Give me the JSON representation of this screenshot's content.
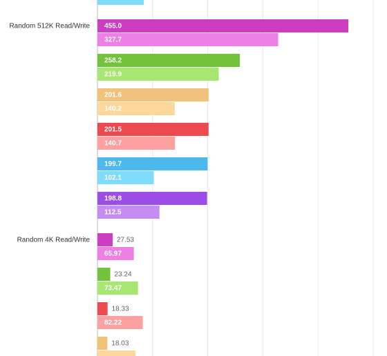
{
  "chart_data": {
    "type": "grouped-hbar",
    "xlim": [
      0,
      500
    ],
    "xticks": [
      0,
      100,
      200,
      300,
      400,
      500
    ],
    "grid": true,
    "groups": [
      {
        "label": null,
        "pairs": [
          {
            "colors": [
              "#4db8ec",
              "#7edbfb"
            ],
            "values": [
              null,
              84
            ],
            "value_labels": [
              null,
              null
            ]
          }
        ]
      },
      {
        "label": "Random 512K Read/Write",
        "pairs": [
          {
            "colors": [
              "#cc3dc2",
              "#ee7fe3"
            ],
            "values": [
              455.0,
              327.7
            ],
            "value_labels": [
              "455.0",
              "327.7"
            ]
          },
          {
            "colors": [
              "#73c23c",
              "#a8e672"
            ],
            "values": [
              258.2,
              219.9
            ],
            "value_labels": [
              "258.2",
              "219.9"
            ]
          },
          {
            "colors": [
              "#f0c27a",
              "#fcd89d"
            ],
            "values": [
              201.6,
              140.2
            ],
            "value_labels": [
              "201.6",
              "140.2"
            ]
          },
          {
            "colors": [
              "#ec4a4f",
              "#fca0a0"
            ],
            "values": [
              201.5,
              140.7
            ],
            "value_labels": [
              "201.5",
              "140.7"
            ]
          },
          {
            "colors": [
              "#4db8ec",
              "#7edbfb"
            ],
            "values": [
              199.7,
              102.1
            ],
            "value_labels": [
              "199.7",
              "102.1"
            ]
          },
          {
            "colors": [
              "#9b4de6",
              "#c38ef0"
            ],
            "values": [
              198.8,
              112.5
            ],
            "value_labels": [
              "198.8",
              "112.5"
            ]
          }
        ]
      },
      {
        "label": "Random 4K Read/Write",
        "pairs": [
          {
            "colors": [
              "#cc3dc2",
              "#ee7fe3"
            ],
            "values": [
              27.53,
              65.97
            ],
            "value_labels": [
              "27.53",
              "65.97"
            ]
          },
          {
            "colors": [
              "#73c23c",
              "#a8e672"
            ],
            "values": [
              23.24,
              73.47
            ],
            "value_labels": [
              "23.24",
              "73.47"
            ]
          },
          {
            "colors": [
              "#ec4a4f",
              "#fca0a0"
            ],
            "values": [
              18.33,
              82.22
            ],
            "value_labels": [
              "18.33",
              "82.22"
            ]
          },
          {
            "colors": [
              "#f0c27a",
              "#fcd89d"
            ],
            "values": [
              18.03,
              69
            ],
            "value_labels": [
              "18.03",
              null
            ]
          }
        ]
      }
    ]
  }
}
